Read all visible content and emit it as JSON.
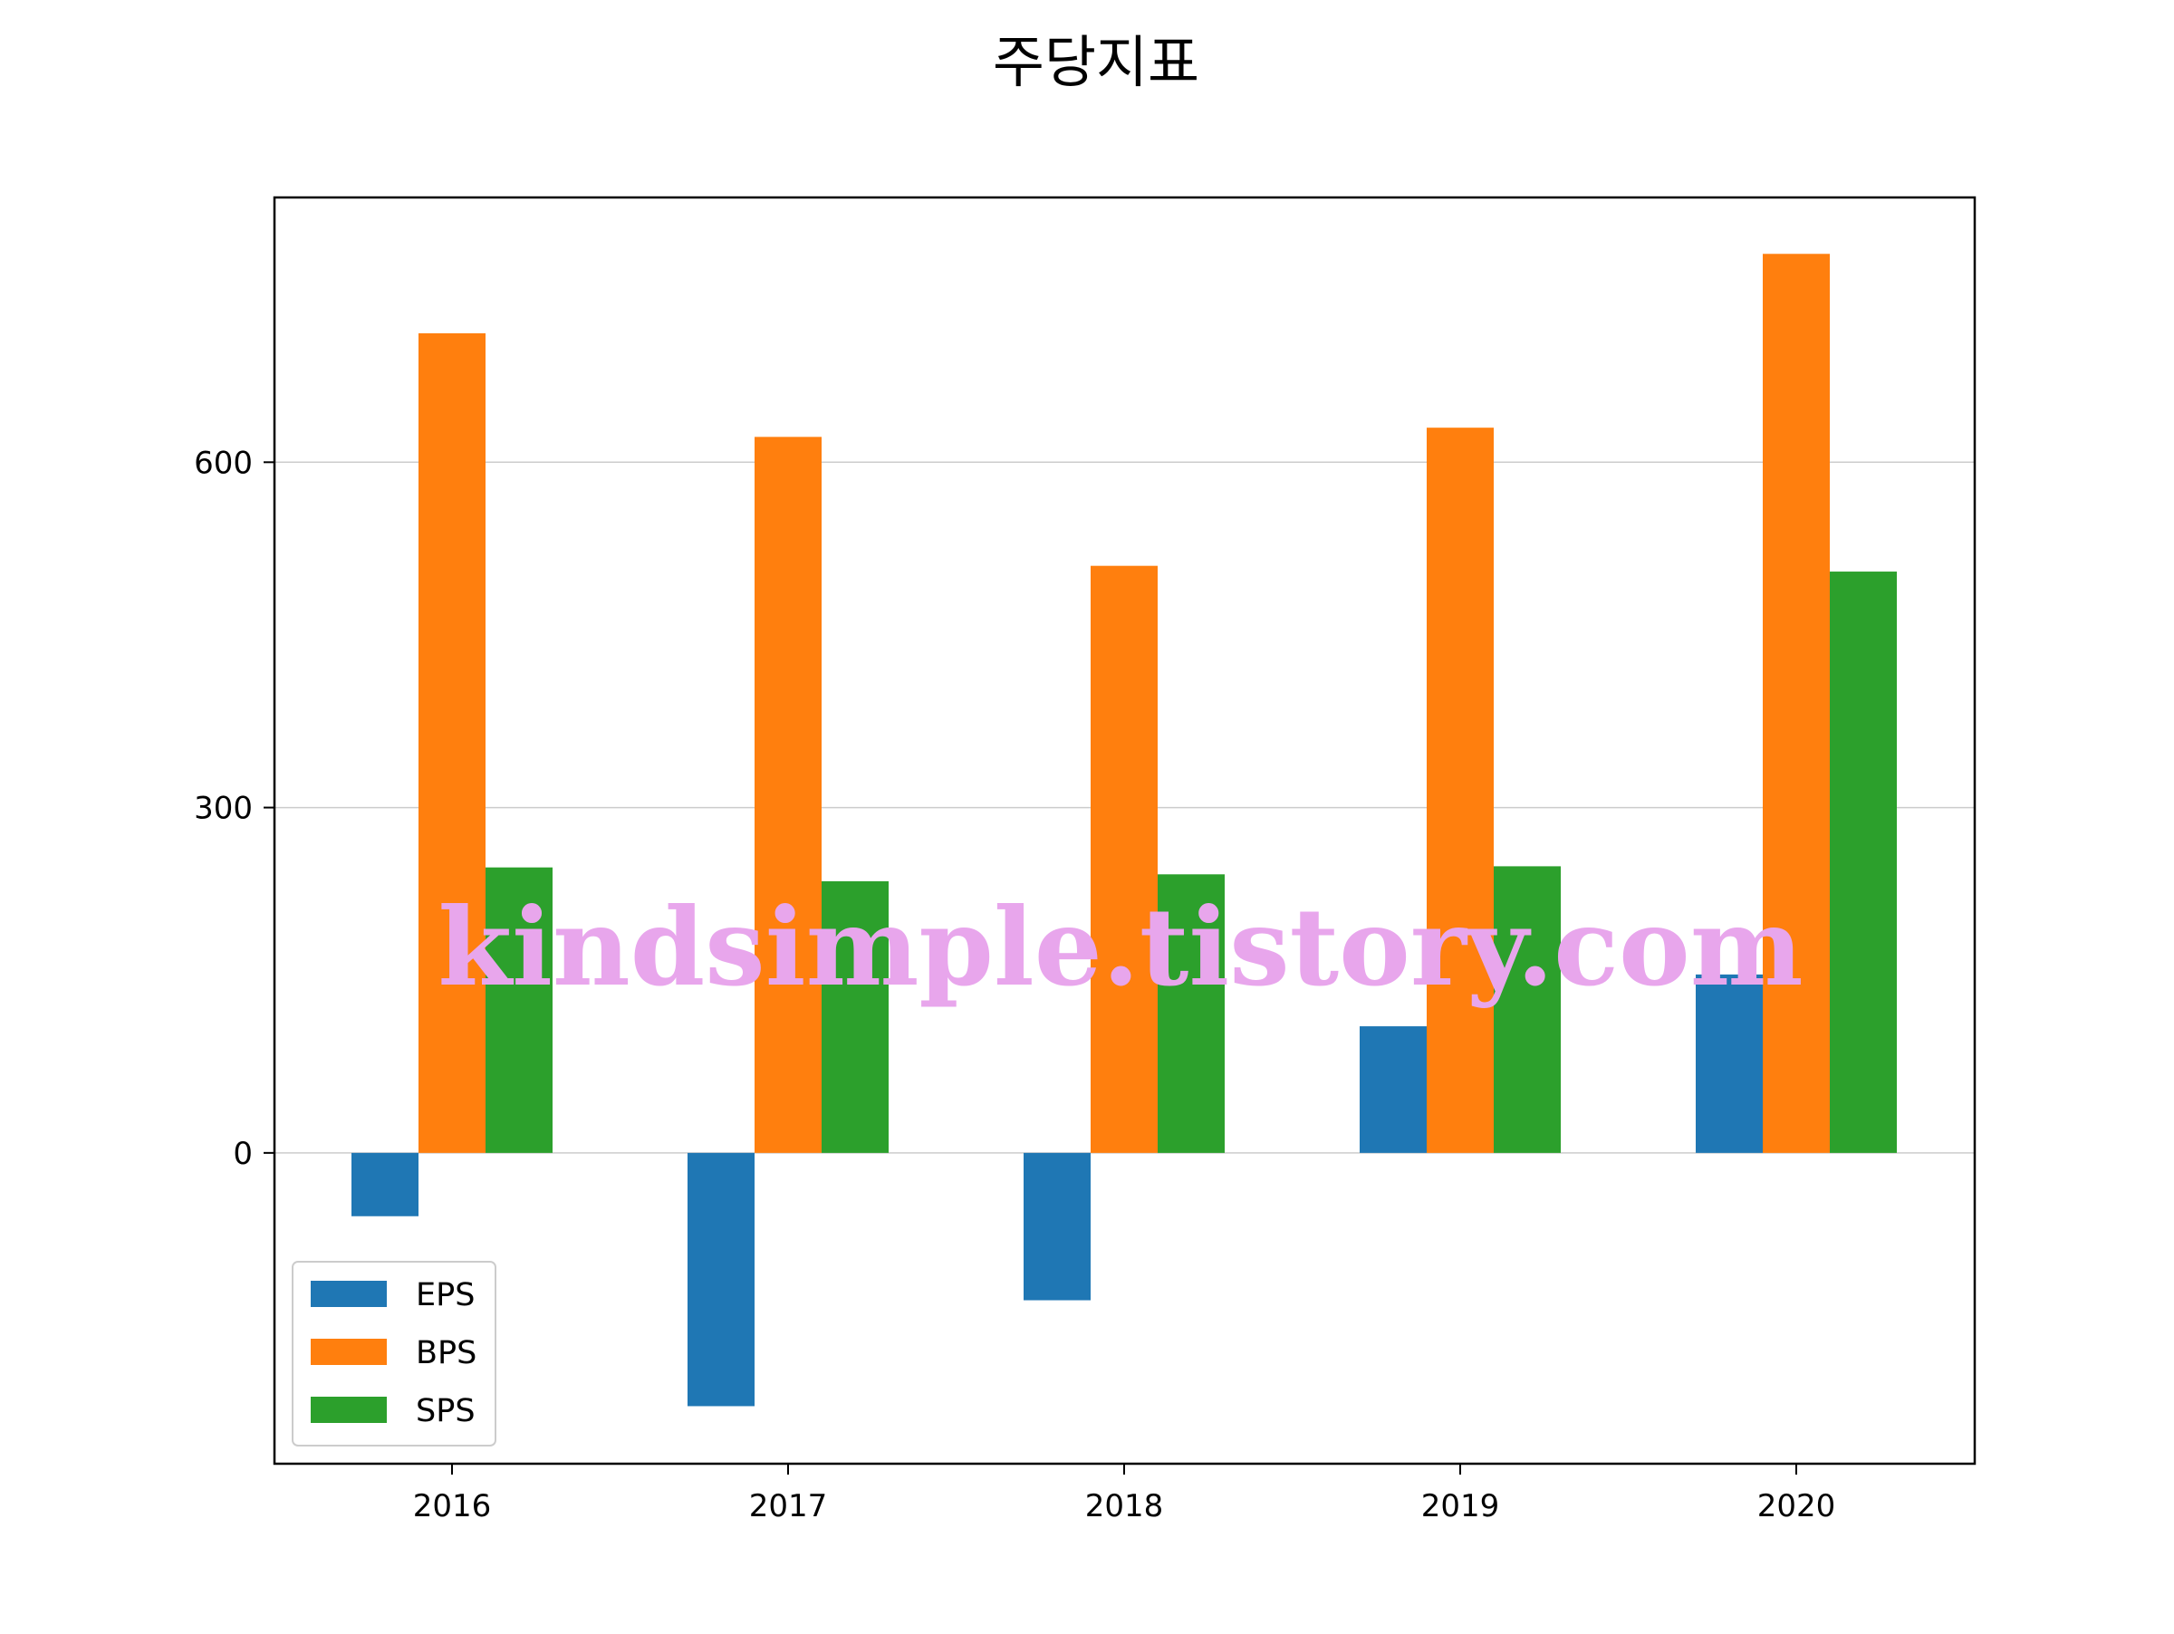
{
  "chart_data": {
    "type": "bar",
    "title": "주당지표",
    "xlabel": "",
    "ylabel": "",
    "categories": [
      "2016",
      "2017",
      "2018",
      "2019",
      "2020"
    ],
    "series": [
      {
        "name": "EPS",
        "color": "#1f77b4",
        "values": [
          -55,
          -220,
          -128,
          110,
          155
        ]
      },
      {
        "name": "BPS",
        "color": "#ff7f0e",
        "values": [
          712,
          622,
          510,
          630,
          781
        ]
      },
      {
        "name": "SPS",
        "color": "#2ca02c",
        "values": [
          248,
          236,
          242,
          249,
          505
        ]
      }
    ],
    "ylim": [
      -270,
      830
    ],
    "yticks": [
      0,
      300,
      600
    ],
    "ytick_labels": [
      "0",
      "300",
      "600"
    ],
    "grid": "y",
    "legend_position": "lower-left",
    "watermark": "kindsimple.tistory.com",
    "watermark_color": "#e8a6ec"
  }
}
